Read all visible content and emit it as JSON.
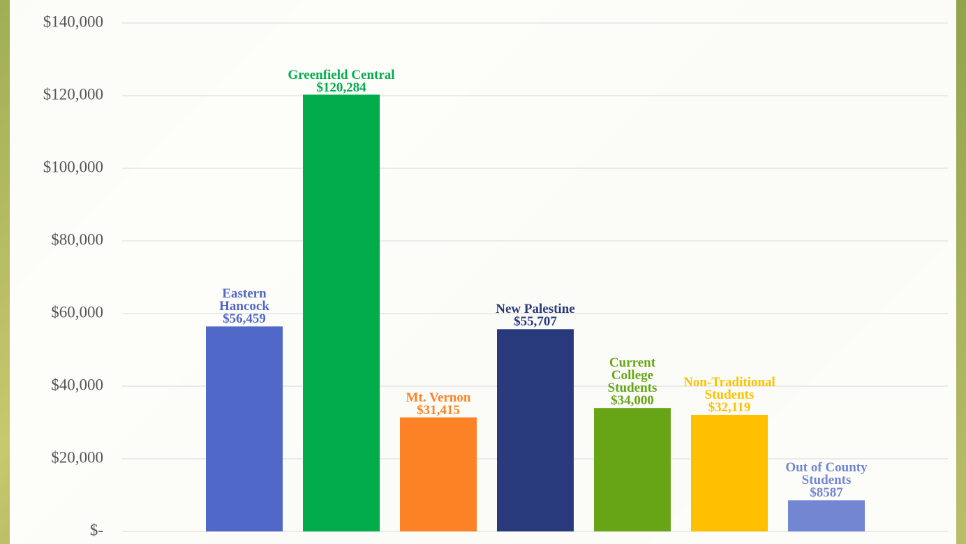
{
  "chart_data": {
    "type": "bar",
    "categories": [
      "Eastern Hancock",
      "Greenfield Central",
      "Mt. Vernon",
      "New Palestine",
      "Current College Students",
      "Non-Traditional Students",
      "Out of County Students"
    ],
    "values": [
      56459,
      120284,
      31415,
      55707,
      34000,
      32119,
      8587
    ],
    "value_labels": [
      "$56,459",
      "$120,284",
      "$31,415",
      "$55,707",
      "$34,000",
      "$32,119",
      "$8587"
    ],
    "colors": [
      "#5068c8",
      "#00ac4c",
      "#fd8225",
      "#293a7c",
      "#68a516",
      "#fec000",
      "#7286d2"
    ],
    "ylim": [
      0,
      140000
    ],
    "yticks": [
      {
        "value": 0,
        "label": "$-"
      },
      {
        "value": 20000,
        "label": "$20,000"
      },
      {
        "value": 40000,
        "label": "$40,000"
      },
      {
        "value": 60000,
        "label": "$60,000"
      },
      {
        "value": 80000,
        "label": "$80,000"
      },
      {
        "value": 100000,
        "label": "$100,000"
      },
      {
        "value": 120000,
        "label": "$120,000"
      },
      {
        "value": 140000,
        "label": "$140,000"
      }
    ],
    "grid": true
  }
}
